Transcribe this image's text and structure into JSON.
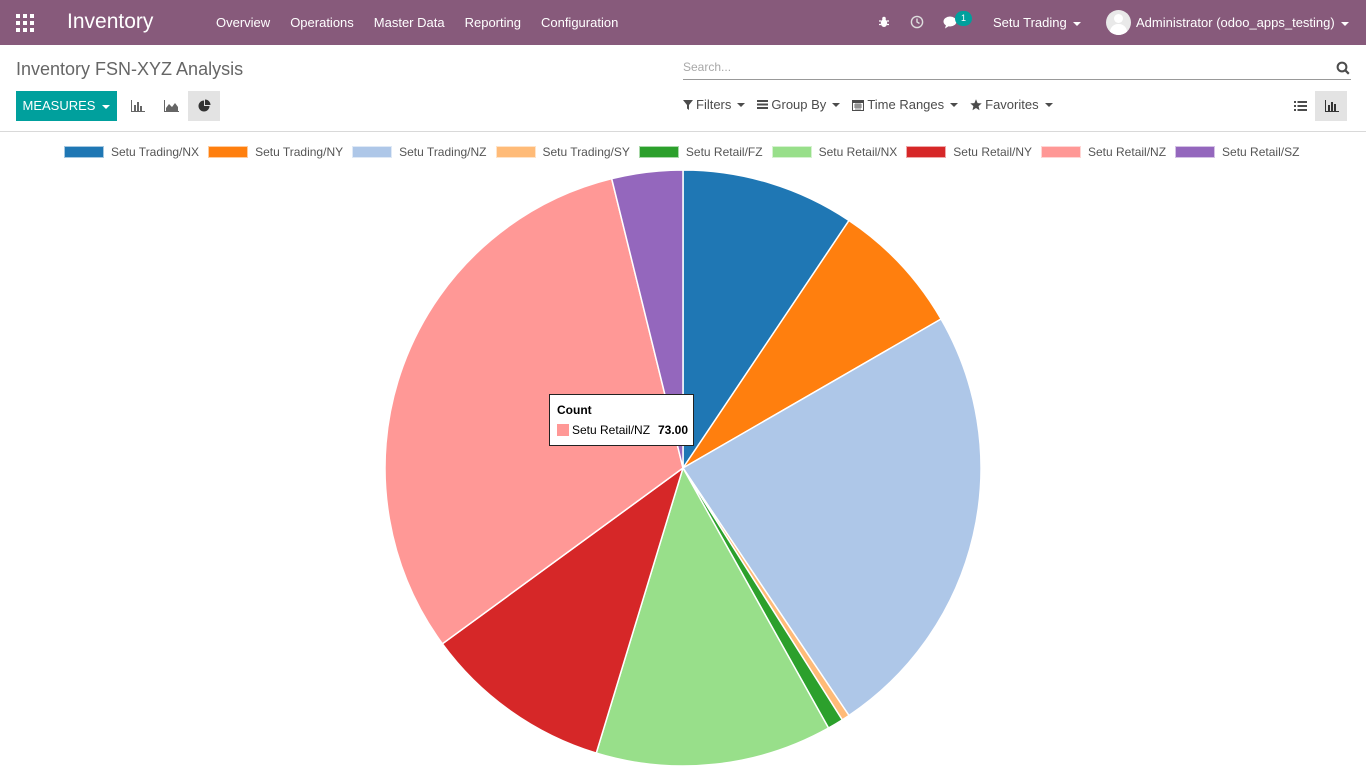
{
  "app": {
    "brand": "Inventory",
    "menu": [
      "Overview",
      "Operations",
      "Master Data",
      "Reporting",
      "Configuration"
    ],
    "messages_badge": "1",
    "company": "Setu Trading",
    "user": "Administrator (odoo_apps_testing)"
  },
  "control_panel": {
    "title": "Inventory FSN-XYZ Analysis",
    "search_placeholder": "Search...",
    "search_value": "",
    "measures_label": "MEASURES",
    "filters_label": "Filters",
    "group_by_label": "Group By",
    "time_ranges_label": "Time Ranges",
    "favorites_label": "Favorites",
    "active_chart_mode": "pie",
    "active_view": "graph"
  },
  "chart_data": {
    "type": "pie",
    "measure": "Count",
    "legend_position": "top",
    "categories": [
      "Setu Trading/NX",
      "Setu Trading/NY",
      "Setu Trading/NZ",
      "Setu Trading/SY",
      "Setu Retail/FZ",
      "Setu Retail/NX",
      "Setu Retail/NY",
      "Setu Retail/NZ",
      "Setu Retail/SZ"
    ],
    "values": [
      22,
      17,
      56,
      1,
      2,
      30,
      24,
      73,
      9
    ],
    "colors": [
      "#1f77b4",
      "#ff7f0e",
      "#aec7e8",
      "#ffbb78",
      "#2ca02c",
      "#98df8a",
      "#d62728",
      "#ff9896",
      "#9467bd"
    ]
  },
  "tooltip": {
    "title": "Count",
    "label": "Setu Retail/NZ",
    "value": "73.00",
    "color": "#ff9896"
  }
}
